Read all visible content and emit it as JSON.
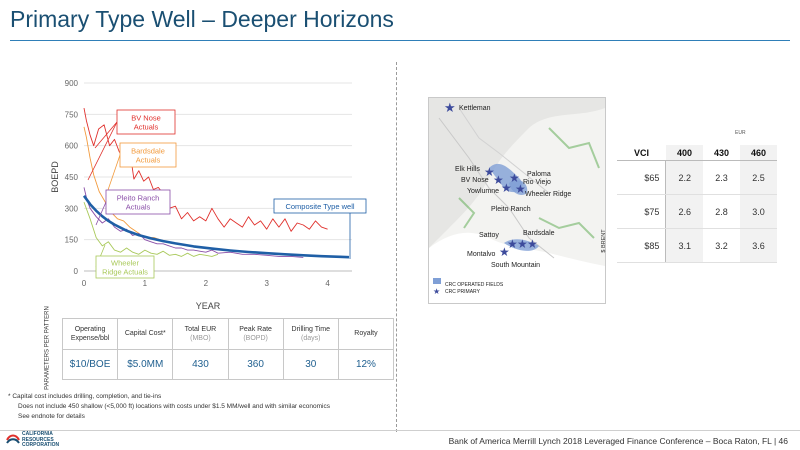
{
  "page": {
    "title": "Primary Type Well – Deeper Horizons",
    "footer": "Bank of America Merrill Lynch 2018 Leveraged Finance Conference – Boca Raton, FL  |  46",
    "logo_lines": [
      "CALIFORNIA",
      "RESOURCES",
      "CORPORATION"
    ],
    "footnotes": [
      "* Capital cost includes drilling, completion, and tie-ins",
      "Does not include 450 shallow (<5,000 ft) locations with costs under $1.5 MM/well and with similar economics",
      "See endnote for details"
    ]
  },
  "chart_data": {
    "type": "line",
    "xlabel": "YEAR",
    "ylabel": "BOEPD",
    "xlim": [
      0,
      4.4
    ],
    "ylim": [
      0,
      900
    ],
    "x_ticks": [
      "0",
      "1",
      "2",
      "3",
      "4"
    ],
    "y_ticks": [
      "0",
      "150",
      "300",
      "450",
      "600",
      "750",
      "900"
    ],
    "grid": true,
    "series": [
      {
        "name": "BV Nose Actuals",
        "color": "#e0302c",
        "x": [
          0.0,
          0.04,
          0.1,
          0.16,
          0.24,
          0.33,
          0.42,
          0.5,
          0.58,
          0.66,
          0.74,
          0.82,
          0.9,
          0.98,
          1.06,
          1.14,
          1.22,
          1.3,
          1.4,
          1.5,
          1.6,
          1.7,
          1.8,
          1.9,
          2.0,
          2.1,
          2.2,
          2.3,
          2.4,
          2.5,
          2.6,
          2.7,
          2.8,
          2.9,
          3.0,
          3.1,
          3.2,
          3.3,
          3.4,
          3.5,
          3.6,
          3.7,
          3.8,
          3.9,
          4.0
        ],
        "y": [
          780,
          720,
          650,
          600,
          680,
          700,
          600,
          630,
          570,
          540,
          600,
          440,
          480,
          430,
          450,
          390,
          400,
          370,
          300,
          310,
          250,
          280,
          240,
          260,
          240,
          300,
          250,
          210,
          250,
          230,
          210,
          260,
          220,
          240,
          200,
          250,
          210,
          250,
          190,
          230,
          220,
          200,
          240,
          210,
          200
        ]
      },
      {
        "name": "Bardsdale Actuals",
        "color": "#f29a3c",
        "x": [
          0.0,
          0.04,
          0.1,
          0.16,
          0.25,
          0.35,
          0.45,
          0.55,
          0.65,
          0.75,
          0.85,
          0.95,
          1.05,
          1.15,
          1.25,
          1.35
        ],
        "y": [
          690,
          640,
          540,
          460,
          380,
          330,
          280,
          250,
          240,
          210,
          190,
          170,
          160,
          160,
          150,
          140
        ]
      },
      {
        "name": "Pleito Ranch Actuals",
        "color": "#8a4fa8",
        "x": [
          0.0,
          0.05,
          0.1,
          0.2,
          0.3,
          0.4,
          0.5,
          0.6,
          0.7,
          0.8,
          0.9,
          1.0,
          1.1,
          1.2,
          1.3,
          1.4,
          1.5,
          1.6,
          1.7,
          1.8,
          1.9,
          2.0,
          2.1,
          2.2,
          2.4,
          2.6,
          2.8,
          3.0,
          3.2,
          3.4,
          3.6
        ],
        "y": [
          400,
          340,
          300,
          260,
          230,
          250,
          210,
          190,
          200,
          170,
          180,
          150,
          140,
          130,
          130,
          120,
          110,
          110,
          100,
          100,
          95,
          90,
          100,
          85,
          90,
          80,
          80,
          75,
          70,
          70,
          65
        ]
      },
      {
        "name": "Wheeler Ridge Actuals",
        "color": "#a9c95a",
        "x": [
          0.0,
          0.1,
          0.2,
          0.3,
          0.4,
          0.5,
          0.6,
          0.7,
          0.8,
          0.9,
          1.0,
          1.1,
          1.2,
          1.3,
          1.4,
          1.5,
          1.6,
          1.7,
          1.8,
          1.9,
          2.0,
          2.1,
          2.2
        ],
        "y": [
          330,
          250,
          160,
          120,
          140,
          100,
          90,
          110,
          90,
          80,
          100,
          85,
          80,
          95,
          75,
          80,
          70,
          85,
          70,
          80,
          75,
          70,
          80
        ]
      },
      {
        "name": "Composite Type well",
        "color": "#1f5fa6",
        "x": [
          0.0,
          0.1,
          0.2,
          0.3,
          0.4,
          0.5,
          0.7,
          0.9,
          1.1,
          1.3,
          1.5,
          1.8,
          2.1,
          2.4,
          2.7,
          3.0,
          3.3,
          3.6,
          3.9,
          4.2,
          4.35
        ],
        "y": [
          360,
          320,
          288,
          262,
          240,
          222,
          193,
          172,
          156,
          143,
          132,
          118,
          107,
          98,
          91,
          85,
          80,
          75,
          71,
          68,
          66
        ]
      }
    ],
    "annotations": [
      {
        "text": "BV Nose Actuals",
        "lines": [
          "BV Nose",
          "Actuals"
        ],
        "color": "#e0302c"
      },
      {
        "text": "Bardsdale Actuals",
        "lines": [
          "Bardsdale",
          "Actuals"
        ],
        "color": "#f29a3c"
      },
      {
        "text": "Pleito Ranch Actuals",
        "lines": [
          "Pleito Ranch",
          "Actuals"
        ],
        "color": "#8a4fa8"
      },
      {
        "text": "Wheeler Ridge Actuals",
        "lines": [
          "Wheeler",
          "Ridge Actuals"
        ],
        "color": "#a9c95a"
      },
      {
        "text": "Composite Type well",
        "lines": [
          "Composite Type well"
        ],
        "color": "#1f5fa6"
      }
    ]
  },
  "parameters": {
    "row_label": "PARAMETERS PER PATTERN",
    "items": [
      {
        "label": "Operating Expense/bbl",
        "unit": "",
        "value": "$10/BOE"
      },
      {
        "label": "Capital Cost*",
        "unit": "",
        "value": "$5.0MM"
      },
      {
        "label": "Total EUR",
        "unit": "(MBO)",
        "value": "430"
      },
      {
        "label": "Peak Rate",
        "unit": "(BOPD)",
        "value": "360"
      },
      {
        "label": "Drilling Time",
        "unit": "(days)",
        "value": "30"
      },
      {
        "label": "Royalty",
        "unit": "",
        "value": "12%"
      }
    ]
  },
  "map": {
    "labels": [
      "Kettleman",
      "Elk Hills",
      "BV Nose",
      "Yowlumne",
      "Paloma",
      "Rio Viejo",
      "Wheeler Ridge",
      "Pleito Ranch",
      "Sattoy",
      "Bardsdale",
      "Montalvo",
      "South Mountain"
    ],
    "legend": [
      "CRC OPERATED FIELDS",
      "CRC PRIMARY"
    ],
    "colors": {
      "marker": "#3d4b9c",
      "field": "#7f9fd6"
    }
  },
  "vci_table": {
    "eur_label": "EUR",
    "corner": "VCI",
    "columns": [
      "400",
      "430",
      "460"
    ],
    "side_label": "$ BRENT",
    "rows": [
      {
        "price": "$65",
        "values": [
          "2.2",
          "2.3",
          "2.5"
        ]
      },
      {
        "price": "$75",
        "values": [
          "2.6",
          "2.8",
          "3.0"
        ]
      },
      {
        "price": "$85",
        "values": [
          "3.1",
          "3.2",
          "3.6"
        ]
      }
    ]
  }
}
